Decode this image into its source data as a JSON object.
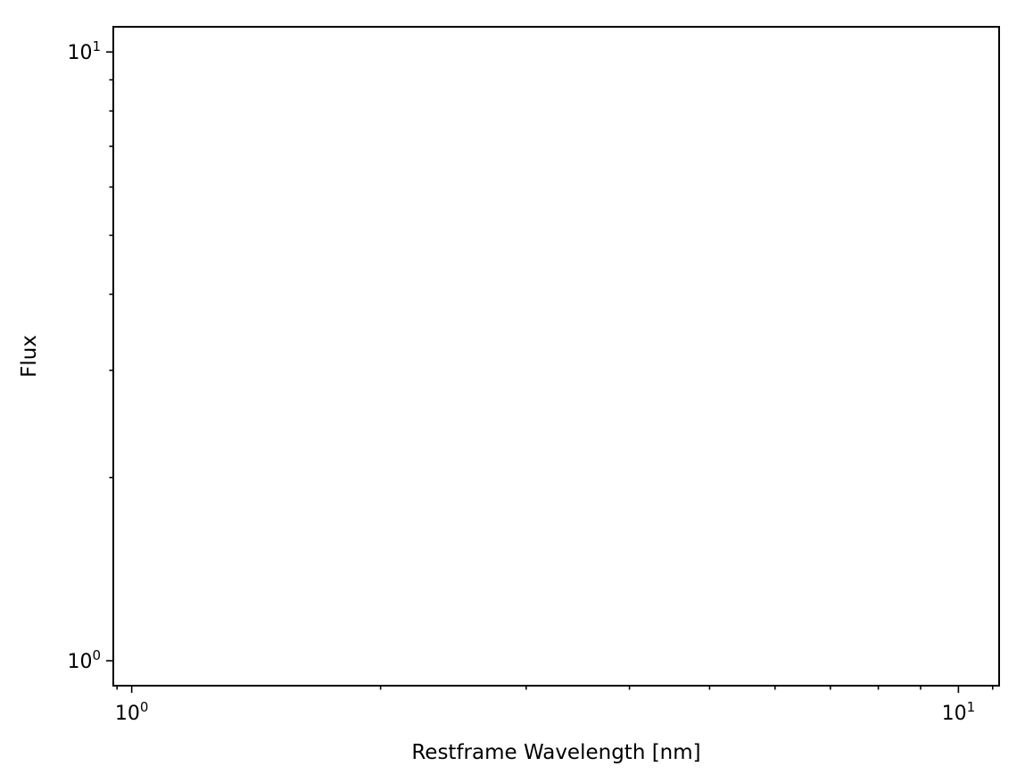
{
  "chart_data": {
    "type": "line",
    "xlabel": "Restframe Wavelength [nm]",
    "ylabel": "Flux",
    "xscale": "log",
    "yscale": "log",
    "xlim": [
      0.95,
      11.2
    ],
    "ylim": [
      0.91,
      11.0
    ],
    "x_major_ticks": [
      {
        "value": 1,
        "base": "10",
        "exp": "0"
      },
      {
        "value": 10,
        "base": "10",
        "exp": "1"
      }
    ],
    "y_major_ticks": [
      {
        "value": 1,
        "base": "10",
        "exp": "0"
      },
      {
        "value": 10,
        "base": "10",
        "exp": "1"
      }
    ],
    "x_minor_ticks": [
      0.96,
      2,
      3,
      4,
      5,
      6,
      7,
      8,
      9,
      11
    ],
    "y_minor_ticks": [
      2,
      3,
      4,
      5,
      6,
      7,
      8,
      9
    ],
    "series": [],
    "grid": false,
    "legend": "none"
  }
}
